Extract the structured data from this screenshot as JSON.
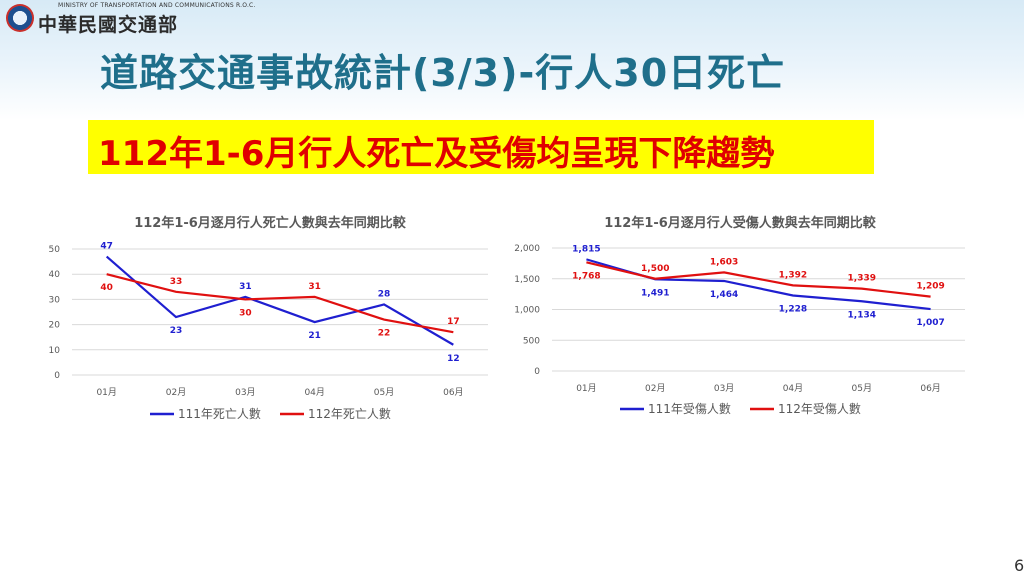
{
  "header": {
    "org_name": "中華民國交通部",
    "org_en": "MINISTRY OF TRANSPORTATION AND COMMUNICATIONS R.O.C."
  },
  "title": "道路交通事故統計(3/3)-行人30日死亡",
  "highlight": "112年1-6月行人死亡及受傷均呈現下降趨勢",
  "page_number": "6",
  "colors": {
    "series_111": "#1f1fd0",
    "series_112": "#e01010",
    "title": "#1f6f8b",
    "highlight_bg": "#ffff00",
    "highlight_text": "#e00000"
  },
  "chart_data": [
    {
      "type": "line",
      "title": "112年1-6月逐月行人死亡人數與去年同期比較",
      "categories": [
        "01月",
        "02月",
        "03月",
        "04月",
        "05月",
        "06月"
      ],
      "ylim": [
        0,
        50
      ],
      "yticks": [
        "0",
        "10",
        "20",
        "30",
        "40",
        "50"
      ],
      "grid": true,
      "legend": "bottom",
      "series": [
        {
          "name": "111年死亡人數",
          "values": [
            47,
            23,
            31,
            21,
            28,
            12
          ],
          "labels": [
            "47",
            "23",
            "31",
            "21",
            "28",
            "12"
          ]
        },
        {
          "name": "112年死亡人數",
          "values": [
            40,
            33,
            30,
            31,
            22,
            17
          ],
          "labels": [
            "40",
            "33",
            "30",
            "31",
            "22",
            "17"
          ]
        }
      ]
    },
    {
      "type": "line",
      "title": "112年1-6月逐月行人受傷人數與去年同期比較",
      "categories": [
        "01月",
        "02月",
        "03月",
        "04月",
        "05月",
        "06月"
      ],
      "ylim": [
        0,
        2000
      ],
      "yticks": [
        "0",
        "500",
        "1,000",
        "1,500",
        "2,000"
      ],
      "grid": true,
      "legend": "bottom",
      "series": [
        {
          "name": "111年受傷人數",
          "values": [
            1815,
            1491,
            1464,
            1228,
            1134,
            1007
          ],
          "labels": [
            "1,815",
            "1,491",
            "1,464",
            "1,228",
            "1,134",
            "1,007"
          ]
        },
        {
          "name": "112年受傷人數",
          "values": [
            1768,
            1500,
            1603,
            1392,
            1339,
            1209
          ],
          "labels": [
            "1,768",
            "1,500",
            "1,603",
            "1,392",
            "1,339",
            "1,209"
          ]
        }
      ]
    }
  ]
}
